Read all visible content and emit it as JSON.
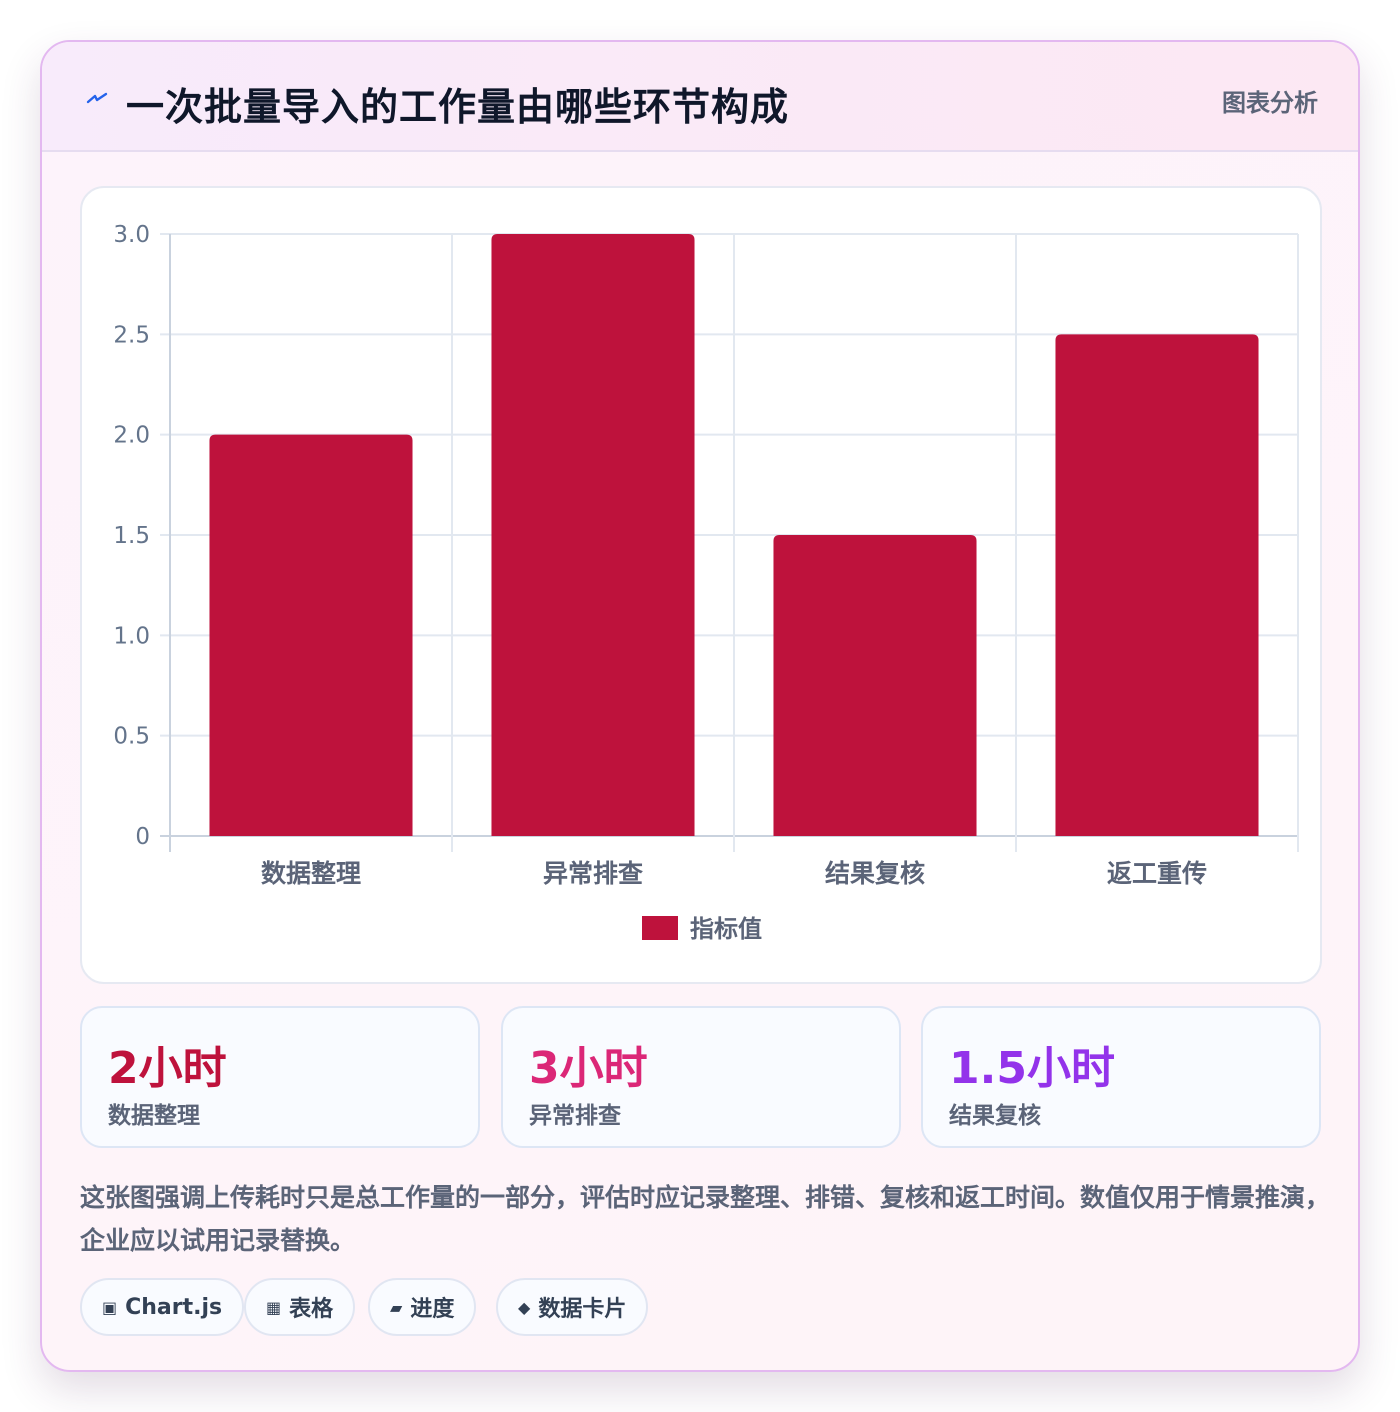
{
  "header": {
    "title": "一次批量导入的工作量由哪些环节构成",
    "icon": "lightning-icon",
    "tag": "图表分析"
  },
  "chart_data": {
    "type": "bar",
    "categories": [
      "数据整理",
      "异常排查",
      "结果复核",
      "返工重传"
    ],
    "series": [
      {
        "name": "指标值",
        "values": [
          2,
          3,
          1.5,
          2.5
        ],
        "color": "#be123c"
      }
    ],
    "ylim": [
      0,
      3
    ],
    "yticks": [
      0,
      0.5,
      1,
      1.5,
      2,
      2.5,
      3
    ],
    "ytick_labels": [
      "0",
      "0.5",
      "1.0",
      "1.5",
      "2.0",
      "2.5",
      "3.0"
    ],
    "title": "",
    "xlabel": "",
    "ylabel": "",
    "grid": true,
    "legend_position": "bottom"
  },
  "stats": [
    {
      "value": "2小时",
      "label": "数据整理",
      "color": "#be123c"
    },
    {
      "value": "3小时",
      "label": "异常排查",
      "color": "#db2777"
    },
    {
      "value": "1.5小时",
      "label": "结果复核",
      "color": "#9333ea"
    }
  ],
  "note": "这张图强调上传耗时只是总工作量的一部分，评估时应记录整理、排错、复核和返工时间。数值仅用于情景推演，企业应以试用记录替换。",
  "tags": [
    {
      "icon": "▣",
      "icon_name": "chart-icon",
      "label": "Chart.js"
    },
    {
      "icon": "▦",
      "icon_name": "table-icon",
      "label": "表格"
    },
    {
      "icon": "▰",
      "icon_name": "progress-icon",
      "label": "进度"
    },
    {
      "icon": "◆",
      "icon_name": "data-card-icon",
      "label": "数据卡片"
    }
  ]
}
